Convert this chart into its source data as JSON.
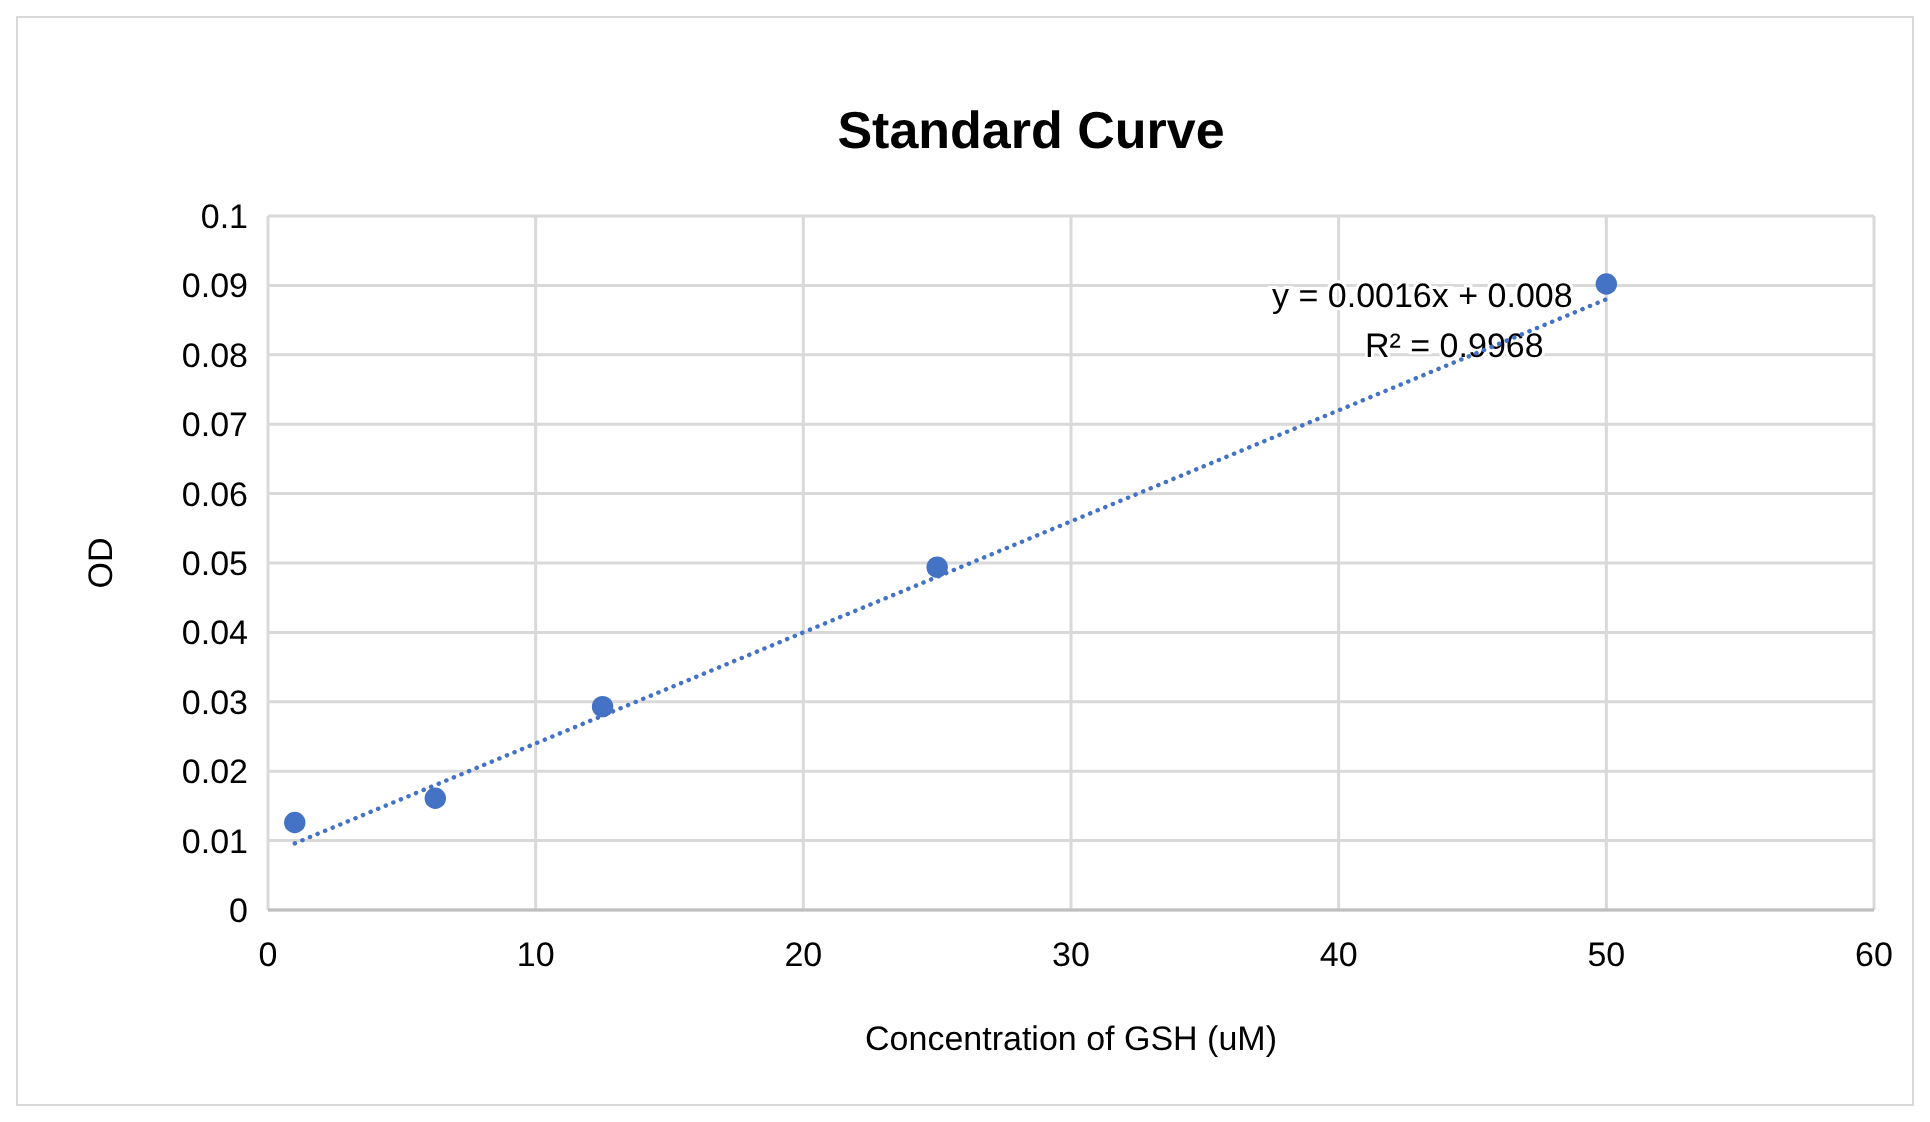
{
  "chart_data": {
    "type": "scatter",
    "title": "Standard Curve",
    "xlabel": "Concentration of GSH (uM)",
    "ylabel": "OD",
    "xlim": [
      0,
      60
    ],
    "xticks": [
      0,
      10,
      20,
      30,
      40,
      50,
      60
    ],
    "ylim": [
      0,
      0.1
    ],
    "yticks": [
      0,
      0.01,
      0.02,
      0.03,
      0.04,
      0.05,
      0.06,
      0.07,
      0.08,
      0.09,
      0.1
    ],
    "grid": true,
    "series": [
      {
        "marker": "circle",
        "color": "#4472c4",
        "x": [
          1,
          6.25,
          12.5,
          25,
          50
        ],
        "values": [
          0.0126,
          0.0161,
          0.0293,
          0.0494,
          0.0902
        ]
      },
      {
        "type": "line",
        "color": "#4472c4",
        "line_style": "dotted",
        "x": [
          1,
          50
        ],
        "values": [
          0.0096,
          0.088
        ]
      }
    ],
    "annotations": [
      "y = 0.0016x + 0.008",
      "R² = 0.9968"
    ]
  }
}
